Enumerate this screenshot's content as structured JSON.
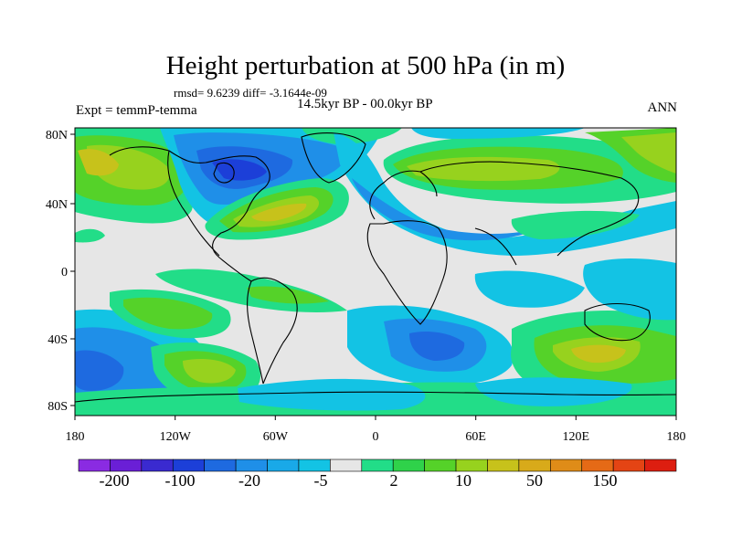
{
  "header": {
    "title": "Height perturbation at 500 hPa (in m)",
    "stats": "rmsd= 9.6239 diff= -3.1644e-09",
    "experiment": "Expt = temmP-temma",
    "period": "14.5kyr BP - 00.0kyr BP",
    "season": "ANN"
  },
  "map": {
    "projection": "cylindrical equidistant",
    "lon_range": [
      -180,
      180
    ],
    "lat_range": [
      -90,
      90
    ],
    "x_tick_labels": [
      "180",
      "120W",
      "60W",
      "0",
      "60E",
      "120E",
      "180"
    ],
    "y_tick_labels": [
      "80N",
      "40N",
      "0",
      "40S",
      "80S"
    ],
    "background_color": "#e6e6e6",
    "coastline_color": "#000000"
  },
  "colorbar": {
    "colors": [
      "#8a2be2",
      "#6a1fd6",
      "#3a2ad0",
      "#1c3fd8",
      "#1e6ae0",
      "#1f8fe8",
      "#19a9e8",
      "#13c3e4",
      "#e6e6e6",
      "#22dd88",
      "#2fd24a",
      "#55d229",
      "#97d21e",
      "#c7c21b",
      "#d8aa1a",
      "#df8c18",
      "#e56a16",
      "#e44414",
      "#dd1e10"
    ],
    "labels": [
      "-200",
      "-100",
      "-20",
      "-5",
      "2",
      "10",
      "50",
      "150"
    ]
  },
  "field_regions": [
    {
      "lon": -148,
      "lat": 60,
      "level": 0.15,
      "note": "positive"
    },
    {
      "lon": -80,
      "lat": 62,
      "level": -0.25,
      "note": "negative center over Hudson Bay"
    },
    {
      "lon": -45,
      "lat": 40,
      "level": 0.2,
      "note": "positive North Atlantic"
    },
    {
      "lon": 60,
      "lat": 55,
      "level": 0.1,
      "note": "positive Eurasia"
    },
    {
      "lon": 20,
      "lat": 30,
      "level": -0.05,
      "note": "weak negative"
    },
    {
      "lon": -150,
      "lat": -55,
      "level": -0.12,
      "note": "negative south pacific"
    },
    {
      "lon": 95,
      "lat": -55,
      "level": 0.12,
      "note": "positive south indian"
    },
    {
      "lon": 0,
      "lat": -45,
      "level": -0.1,
      "note": "negative south atlantic"
    }
  ]
}
